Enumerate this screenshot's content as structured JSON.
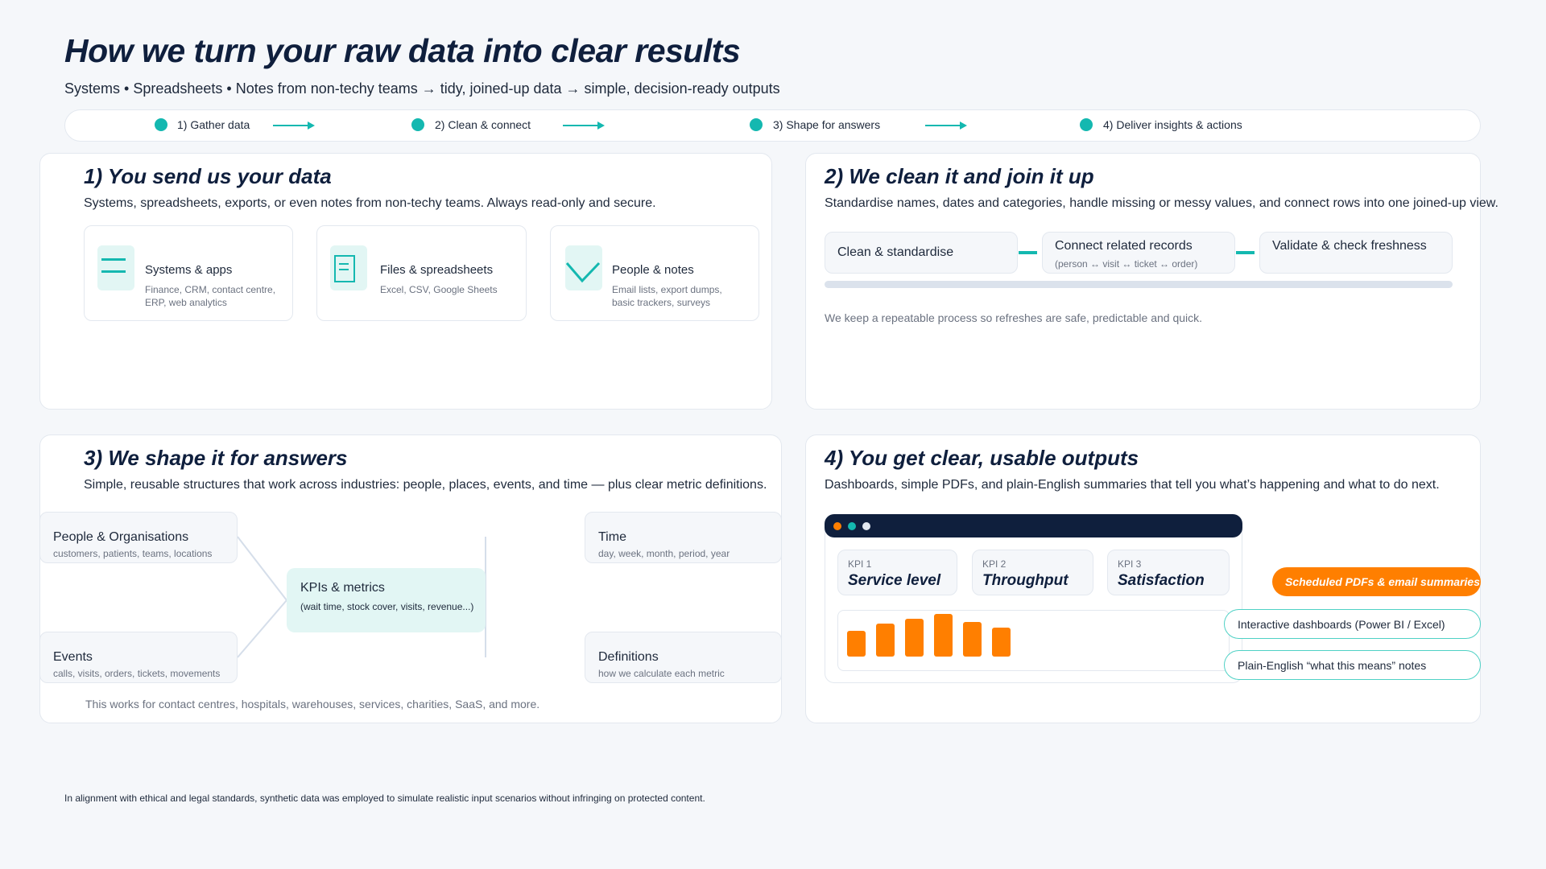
{
  "header": {
    "title": "How we turn your raw data into clear results",
    "subtitle": "Systems • Spreadsheets • Notes from non-techy teams → tidy, joined-up data → simple, decision-ready outputs"
  },
  "steps": [
    "1) Gather data",
    "2) Clean & connect",
    "3) Shape for answers",
    "4) Deliver insights & actions"
  ],
  "colors": {
    "navy": "#0f1f3d",
    "teal": "#14b8b0",
    "orange": "#ff7f00"
  },
  "card1": {
    "title": "1) You send us your data",
    "desc": "Systems, spreadsheets, exports, or even notes from non-techy teams. Always read-only and secure.",
    "sources": [
      {
        "icon": "menu-lines-icon",
        "title": "Systems & apps",
        "l1": "Finance, CRM, contact centre,",
        "l2": "ERP, web analytics"
      },
      {
        "icon": "document-icon",
        "title": "Files & spreadsheets",
        "l1": "Excel, CSV, Google Sheets",
        "l2": ""
      },
      {
        "icon": "chevron-check-icon",
        "title": "People & notes",
        "l1": "Email lists, export dumps,",
        "l2": "basic trackers, surveys"
      }
    ]
  },
  "card2": {
    "title": "2) We clean it and join it up",
    "desc": "Standardise names, dates and categories, handle missing or messy values, and connect rows into one joined-up view.",
    "pipeline": [
      {
        "title": "Clean & standardise"
      },
      {
        "title": "Connect related records",
        "sub": "(person ↔ visit ↔ ticket ↔ order)"
      },
      {
        "title": "Validate & check freshness"
      }
    ],
    "note": "We keep a repeatable process so refreshes are safe, predictable and quick."
  },
  "card3": {
    "title": "3) We shape it for answers",
    "desc": "Simple, reusable structures that work across industries: people, places, events, and time — plus clear metric definitions.",
    "people": {
      "title": "People & Organisations",
      "sub": "customers, patients, teams, locations"
    },
    "events": {
      "title": "Events",
      "sub": "calls, visits, orders, tickets, movements"
    },
    "kpis": {
      "title": "KPIs & metrics",
      "sub": "(wait time, stock cover, visits, revenue...)"
    },
    "time": {
      "title": "Time",
      "sub": "day, week, month, period, year"
    },
    "definitions": {
      "title": "Definitions",
      "sub": "how we calculate each metric"
    },
    "footer": "This works for contact centres, hospitals, warehouses, services, charities, SaaS, and more."
  },
  "card4": {
    "title": "4) You get clear, usable outputs",
    "desc": "Dashboards, simple PDFs, and plain-English summaries that tell you what’s happening and what to do next.",
    "kpis": [
      {
        "label": "KPI 1",
        "value": "Service level"
      },
      {
        "label": "KPI 2",
        "value": "Throughput"
      },
      {
        "label": "KPI 3",
        "value": "Satisfaction"
      }
    ],
    "bars": [
      26,
      33,
      38,
      43,
      35,
      29
    ],
    "outputs": [
      "Scheduled PDFs & email summaries",
      "Interactive dashboards (Power BI / Excel)",
      "Plain-English “what this means” notes"
    ]
  },
  "disclaimer": "In alignment with ethical and legal standards, synthetic data was employed to simulate realistic input scenarios without infringing on protected content."
}
